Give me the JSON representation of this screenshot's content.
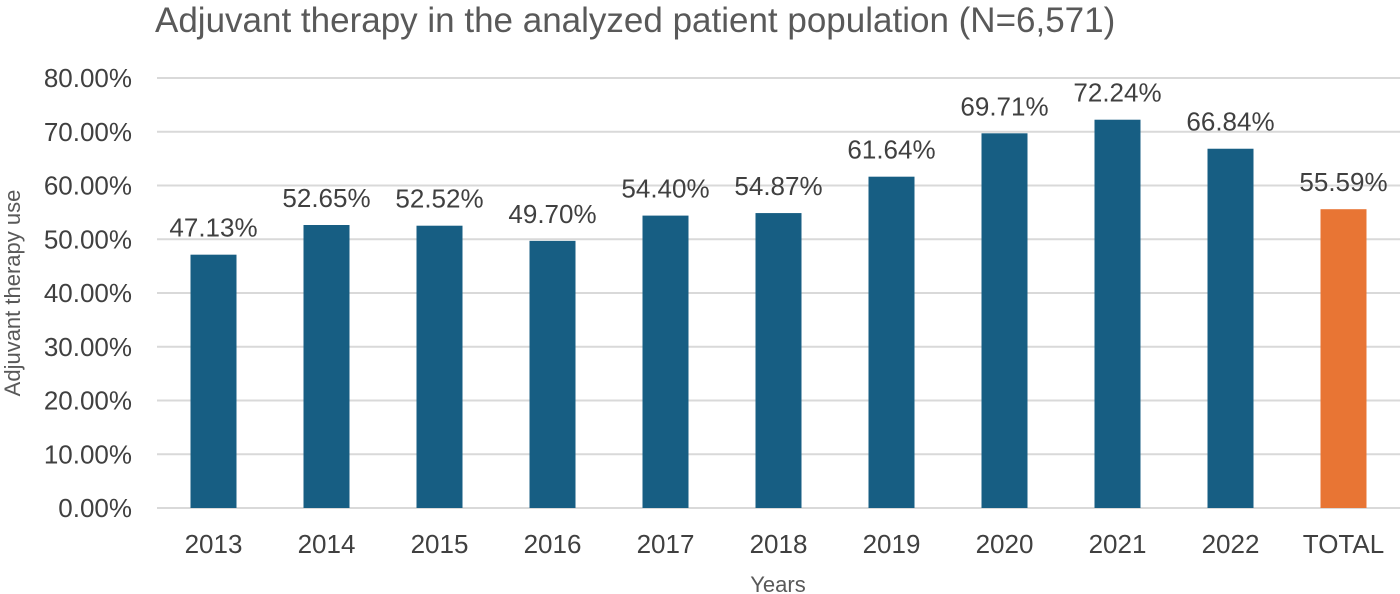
{
  "chart_data": {
    "type": "bar",
    "title": "Adjuvant therapy in the analyzed patient population (N=6,571)",
    "xlabel": "Years",
    "ylabel": "Adjuvant therapy use",
    "categories": [
      "2013",
      "2014",
      "2015",
      "2016",
      "2017",
      "2018",
      "2019",
      "2020",
      "2021",
      "2022",
      "TOTAL"
    ],
    "values": [
      47.13,
      52.65,
      52.52,
      49.7,
      54.4,
      54.87,
      61.64,
      69.71,
      72.24,
      66.84,
      55.59
    ],
    "data_labels": [
      "47.13%",
      "52.65%",
      "52.52%",
      "49.70%",
      "54.40%",
      "54.87%",
      "61.64%",
      "69.71%",
      "72.24%",
      "66.84%",
      "55.59%"
    ],
    "ylim": [
      0,
      80
    ],
    "yticks": [
      0,
      10,
      20,
      30,
      40,
      50,
      60,
      70,
      80
    ],
    "ytick_labels": [
      "0.00%",
      "10.00%",
      "20.00%",
      "30.00%",
      "40.00%",
      "50.00%",
      "60.00%",
      "70.00%",
      "80.00%"
    ],
    "grid": true,
    "legend": "none",
    "colors": {
      "bar": "#175e83",
      "total_bar": "#e87534",
      "grid": "#d9d9d9",
      "text": "#404040"
    }
  }
}
